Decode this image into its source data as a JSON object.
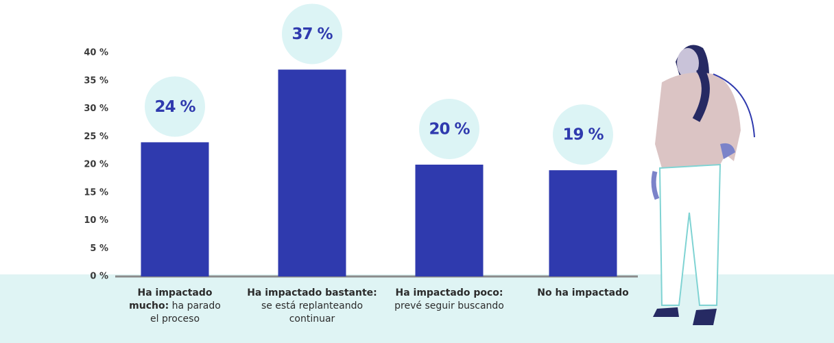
{
  "chart_data": {
    "type": "bar",
    "categories": [
      {
        "bold": "Ha impactado mucho:",
        "text": "ha parado el proceso"
      },
      {
        "bold": "Ha impactado bastante:",
        "text": "se está replanteando continuar"
      },
      {
        "bold": "Ha impactado poco:",
        "text": "prevé seguir buscando"
      },
      {
        "bold": "No ha impactado"
      }
    ],
    "values": [
      24,
      37,
      20,
      19
    ],
    "value_labels": [
      "24 %",
      "37 %",
      "20 %",
      "19 %"
    ],
    "color": "#2f3aae",
    "ylim": [
      0,
      40
    ],
    "yticks": [
      {
        "value": 0,
        "label": "0 %"
      },
      {
        "value": 5,
        "label": "5 %"
      },
      {
        "value": 10,
        "label": "10 %"
      },
      {
        "value": 15,
        "label": "15 %"
      },
      {
        "value": 20,
        "label": "20 %"
      },
      {
        "value": 25,
        "label": "25 %"
      },
      {
        "value": 30,
        "label": "30 %"
      },
      {
        "value": 35,
        "label": "35 %"
      },
      {
        "value": 40,
        "label": "40 %"
      }
    ]
  }
}
